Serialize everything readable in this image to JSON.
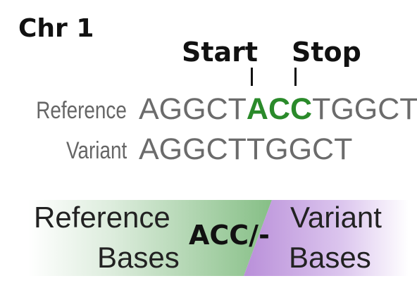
{
  "chromosome_label": "Chr 1",
  "markers": {
    "start": "Start",
    "stop": "Stop"
  },
  "rows": {
    "reference": {
      "label": "Reference",
      "seq_before": "AGGCT",
      "seq_highlight": "ACC",
      "seq_after": "TGGCT"
    },
    "variant": {
      "label": "Variant",
      "sequence": "AGGCTTGGCT"
    }
  },
  "legend_bar": {
    "left_line1": "Reference",
    "left_line2": "Bases",
    "change": "ACC/-",
    "right_line1": "Variant",
    "right_line2": "Bases"
  },
  "colors": {
    "highlight": "#2a8a2a",
    "reference_band": "#86bf86",
    "variant_band": "#b98fd9",
    "sequence_text": "#6b6b6b"
  }
}
